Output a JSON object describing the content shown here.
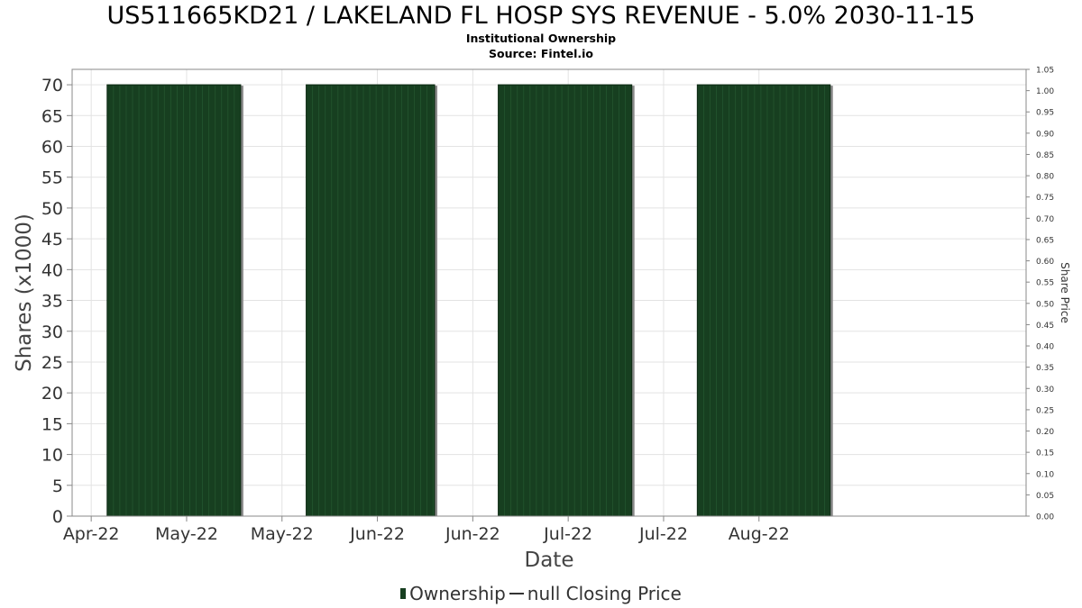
{
  "chart_data": {
    "type": "bar",
    "title": "US511665KD21 / LAKELAND FL HOSP SYS REVENUE - 5.0% 2030-11-15",
    "subtitle_lines": [
      "Institutional Ownership",
      "Source: Fintel.io"
    ],
    "xlabel": "Date",
    "ylabel": "Shares (x1000)",
    "ylabel_right": "Share Price",
    "ylim": [
      0,
      72.5
    ],
    "ylim_right": [
      0,
      1.05
    ],
    "y_ticks": [
      0,
      5,
      10,
      15,
      20,
      25,
      30,
      35,
      40,
      45,
      50,
      55,
      60,
      65,
      70
    ],
    "y_ticks_right": [
      "0.00",
      "0.05",
      "0.10",
      "0.15",
      "0.20",
      "0.25",
      "0.30",
      "0.35",
      "0.40",
      "0.45",
      "0.50",
      "0.55",
      "0.60",
      "0.65",
      "0.70",
      "0.75",
      "0.80",
      "0.85",
      "0.90",
      "0.95",
      "1.00",
      "1.05"
    ],
    "x_tick_labels": [
      "Apr-22",
      "May-22",
      "May-22",
      "Jun-22",
      "Jun-22",
      "Jul-22",
      "Jul-22",
      "Aug-22"
    ],
    "x_domain_days": [
      0,
      150
    ],
    "x_tick_days": [
      3,
      18,
      33,
      48,
      63,
      78,
      93,
      108
    ],
    "grid": true,
    "legend_position": "bottom",
    "series": [
      {
        "name": "Ownership",
        "color": "#173f20",
        "segments": [
          {
            "x_start_day": 5.5,
            "x_end_day": 26.5,
            "value": 70
          },
          {
            "x_start_day": 36.8,
            "x_end_day": 57,
            "value": 70
          },
          {
            "x_start_day": 67,
            "x_end_day": 88,
            "value": 70
          },
          {
            "x_start_day": 98.3,
            "x_end_day": 119.2,
            "value": 70
          }
        ]
      },
      {
        "name": "null Closing Price",
        "color": "#333333",
        "values": []
      }
    ]
  },
  "legend": {
    "ownership_label": "Ownership",
    "price_label": "null Closing Price"
  }
}
